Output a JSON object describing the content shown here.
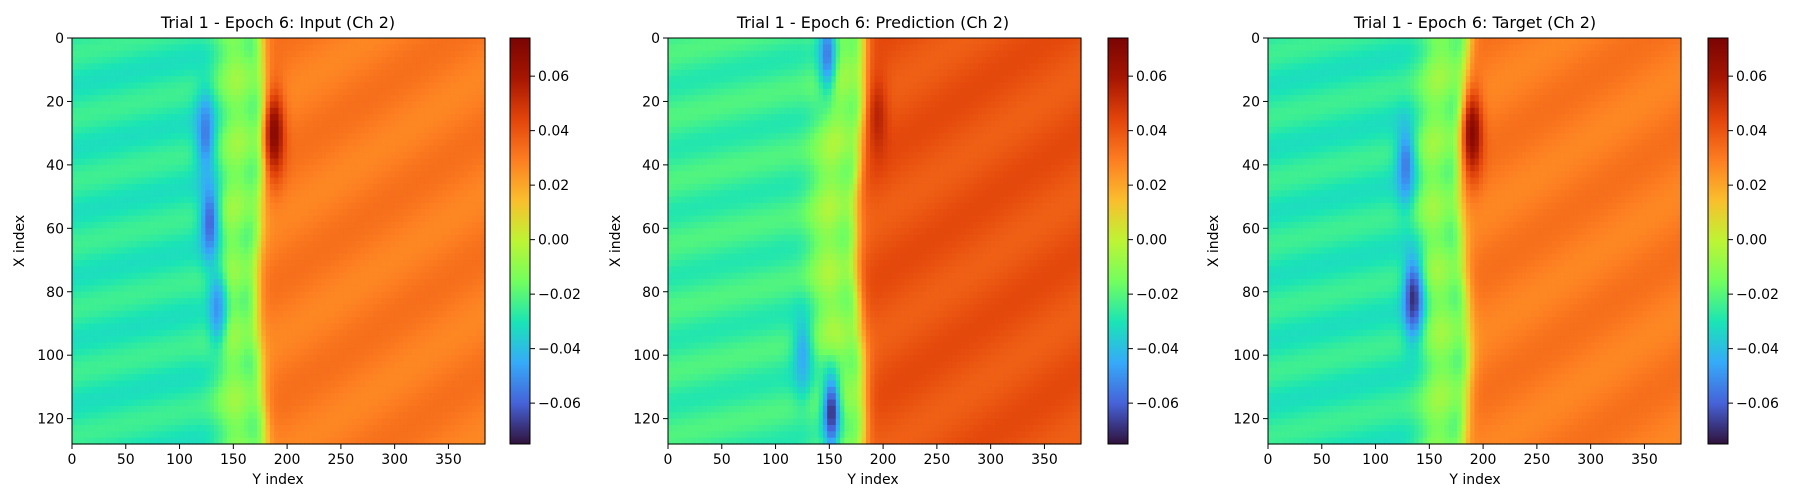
{
  "chart_data": [
    {
      "type": "heatmap",
      "title": "Trial 1 - Epoch 6: Input (Ch 2)",
      "xlabel": "Y index",
      "ylabel": "X index",
      "xlim": [
        0,
        384
      ],
      "ylim": [
        128,
        0
      ],
      "xticks": [
        0,
        50,
        100,
        150,
        200,
        250,
        300,
        350
      ],
      "yticks": [
        0,
        20,
        40,
        60,
        80,
        100,
        120
      ],
      "colorbar": {
        "range": [
          -0.075,
          0.074
        ],
        "ticks": [
          "0.06",
          "0.04",
          "0.02",
          "0.00",
          "−0.02",
          "−0.04",
          "−0.06"
        ],
        "tick_values": [
          0.06,
          0.04,
          0.02,
          0.0,
          -0.02,
          -0.04,
          -0.06
        ]
      },
      "colormap": "turbo",
      "background_value": 0.03,
      "left_value": -0.028,
      "front_y": 175,
      "features": [
        {
          "kind": "trough",
          "x": 30,
          "y": 124,
          "value": -0.055
        },
        {
          "kind": "trough",
          "x": 58,
          "y": 128,
          "value": -0.06
        },
        {
          "kind": "trough",
          "x": 85,
          "y": 135,
          "value": -0.05
        },
        {
          "kind": "peak",
          "x": 30,
          "y": 188,
          "value": 0.07
        }
      ]
    },
    {
      "type": "heatmap",
      "title": "Trial 1 - Epoch 6: Prediction (Ch 2)",
      "xlabel": "Y index",
      "ylabel": "X index",
      "xlim": [
        0,
        384
      ],
      "ylim": [
        128,
        0
      ],
      "xticks": [
        0,
        50,
        100,
        150,
        200,
        250,
        300,
        350
      ],
      "yticks": [
        0,
        20,
        40,
        60,
        80,
        100,
        120
      ],
      "colorbar": {
        "range": [
          -0.075,
          0.074
        ],
        "ticks": [
          "0.06",
          "0.04",
          "0.02",
          "0.00",
          "−0.02",
          "−0.04",
          "−0.06"
        ],
        "tick_values": [
          0.06,
          0.04,
          0.02,
          0.0,
          -0.02,
          -0.04,
          -0.06
        ]
      },
      "colormap": "turbo",
      "background_value": 0.04,
      "left_value": -0.025,
      "front_y": 178,
      "features": [
        {
          "kind": "trough",
          "x": 5,
          "y": 148,
          "value": -0.055
        },
        {
          "kind": "trough",
          "x": 118,
          "y": 152,
          "value": -0.07
        },
        {
          "kind": "trough",
          "x": 100,
          "y": 125,
          "value": -0.045
        },
        {
          "kind": "peak",
          "x": 25,
          "y": 195,
          "value": 0.055
        }
      ]
    },
    {
      "type": "heatmap",
      "title": "Trial 1 - Epoch 6: Target (Ch 2)",
      "xlabel": "Y index",
      "ylabel": "X index",
      "xlim": [
        0,
        384
      ],
      "ylim": [
        128,
        0
      ],
      "xticks": [
        0,
        50,
        100,
        150,
        200,
        250,
        300,
        350
      ],
      "yticks": [
        0,
        20,
        40,
        60,
        80,
        100,
        120
      ],
      "colorbar": {
        "range": [
          -0.075,
          0.074
        ],
        "ticks": [
          "0.06",
          "0.04",
          "0.02",
          "0.00",
          "−0.02",
          "−0.04",
          "−0.06"
        ],
        "tick_values": [
          0.06,
          0.04,
          0.02,
          0.0,
          -0.02,
          -0.04,
          -0.06
        ]
      },
      "colormap": "turbo",
      "background_value": 0.03,
      "left_value": -0.028,
      "front_y": 182,
      "features": [
        {
          "kind": "trough",
          "x": 40,
          "y": 128,
          "value": -0.055
        },
        {
          "kind": "trough",
          "x": 82,
          "y": 135,
          "value": -0.07
        },
        {
          "kind": "peak",
          "x": 30,
          "y": 190,
          "value": 0.07
        }
      ]
    }
  ]
}
